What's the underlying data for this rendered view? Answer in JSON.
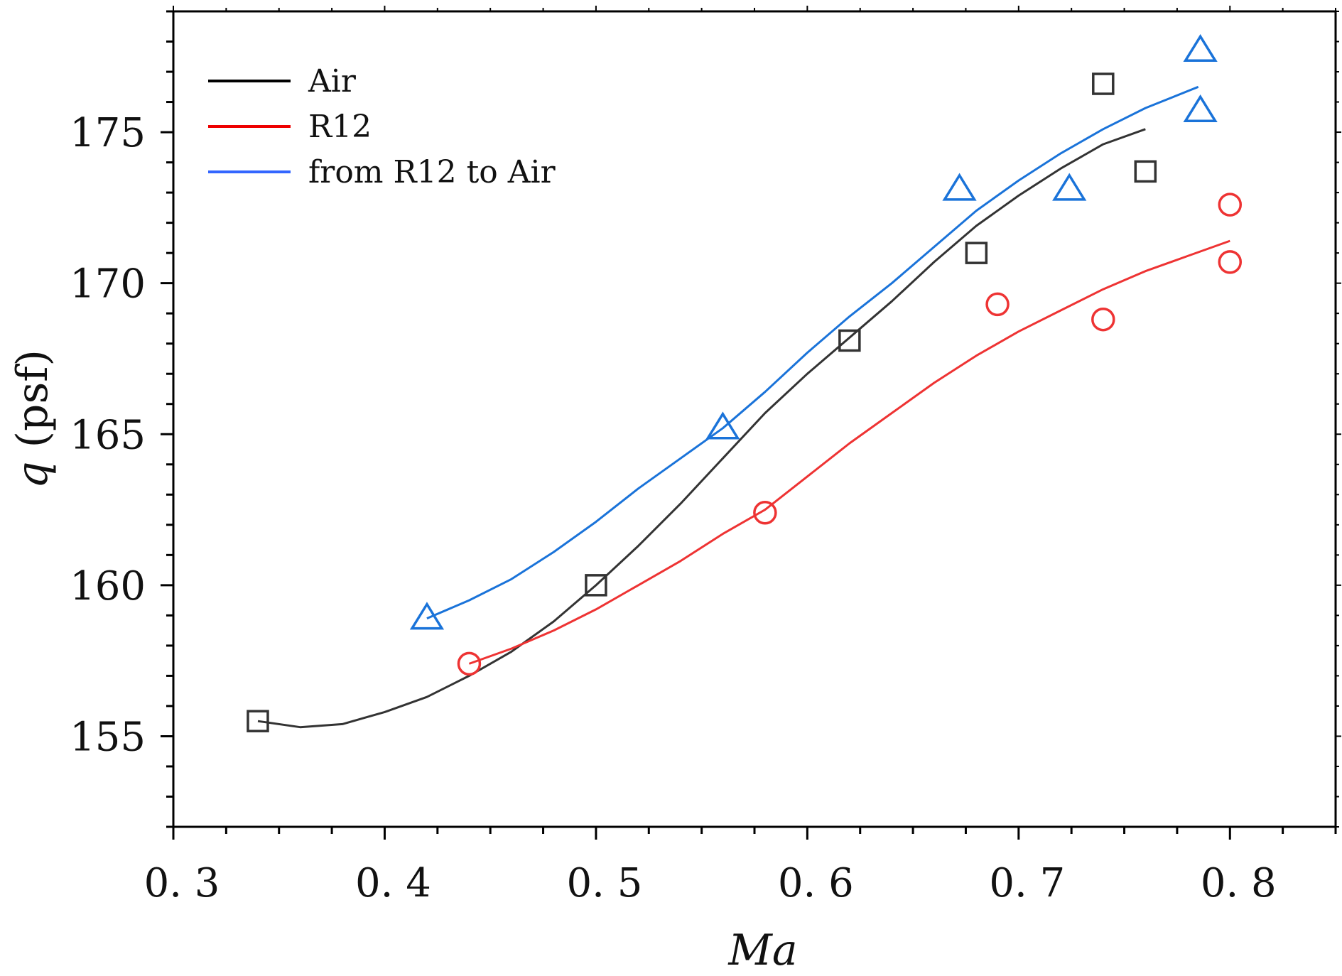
{
  "chart_data": {
    "type": "line",
    "title": "",
    "xlabel": "Ma",
    "ylabel_var": "q",
    "ylabel_unit": " (psf)",
    "xlim": [
      0.3,
      0.85
    ],
    "ylim": [
      152,
      179
    ],
    "xticks": [
      0.3,
      0.4,
      0.5,
      0.6,
      0.7,
      0.8
    ],
    "xtick_labels": [
      "0. 3",
      "0. 4",
      "0. 5",
      "0. 6",
      "0. 7",
      "0. 8"
    ],
    "yticks": [
      155,
      160,
      165,
      170,
      175
    ],
    "ytick_labels": [
      "155",
      "160",
      "165",
      "170",
      "175"
    ],
    "legend_position": "top-left",
    "series": [
      {
        "name": "Air",
        "color": "#333333",
        "legend_color": "#000000",
        "marker": "square",
        "points": [
          {
            "x": 0.34,
            "y": 155.5
          },
          {
            "x": 0.5,
            "y": 160.0
          },
          {
            "x": 0.62,
            "y": 168.1
          },
          {
            "x": 0.68,
            "y": 171.0
          },
          {
            "x": 0.74,
            "y": 176.6
          },
          {
            "x": 0.76,
            "y": 173.7
          }
        ],
        "fit": [
          {
            "x": 0.34,
            "y": 155.5
          },
          {
            "x": 0.36,
            "y": 155.3
          },
          {
            "x": 0.38,
            "y": 155.4
          },
          {
            "x": 0.4,
            "y": 155.8
          },
          {
            "x": 0.42,
            "y": 156.3
          },
          {
            "x": 0.44,
            "y": 157.0
          },
          {
            "x": 0.46,
            "y": 157.8
          },
          {
            "x": 0.48,
            "y": 158.8
          },
          {
            "x": 0.5,
            "y": 160.0
          },
          {
            "x": 0.52,
            "y": 161.3
          },
          {
            "x": 0.54,
            "y": 162.7
          },
          {
            "x": 0.56,
            "y": 164.2
          },
          {
            "x": 0.58,
            "y": 165.7
          },
          {
            "x": 0.6,
            "y": 167.0
          },
          {
            "x": 0.62,
            "y": 168.2
          },
          {
            "x": 0.64,
            "y": 169.4
          },
          {
            "x": 0.66,
            "y": 170.7
          },
          {
            "x": 0.68,
            "y": 171.9
          },
          {
            "x": 0.7,
            "y": 172.9
          },
          {
            "x": 0.72,
            "y": 173.8
          },
          {
            "x": 0.74,
            "y": 174.6
          },
          {
            "x": 0.76,
            "y": 175.1
          }
        ]
      },
      {
        "name": "R12",
        "color": "#ee3333",
        "legend_color": "#ee0000",
        "marker": "circle",
        "points": [
          {
            "x": 0.44,
            "y": 157.4
          },
          {
            "x": 0.58,
            "y": 162.4
          },
          {
            "x": 0.69,
            "y": 169.3
          },
          {
            "x": 0.74,
            "y": 168.8
          },
          {
            "x": 0.8,
            "y": 172.6
          },
          {
            "x": 0.8,
            "y": 170.7
          }
        ],
        "fit": [
          {
            "x": 0.44,
            "y": 157.4
          },
          {
            "x": 0.46,
            "y": 157.9
          },
          {
            "x": 0.48,
            "y": 158.5
          },
          {
            "x": 0.5,
            "y": 159.2
          },
          {
            "x": 0.52,
            "y": 160.0
          },
          {
            "x": 0.54,
            "y": 160.8
          },
          {
            "x": 0.56,
            "y": 161.7
          },
          {
            "x": 0.58,
            "y": 162.5
          },
          {
            "x": 0.6,
            "y": 163.6
          },
          {
            "x": 0.62,
            "y": 164.7
          },
          {
            "x": 0.64,
            "y": 165.7
          },
          {
            "x": 0.66,
            "y": 166.7
          },
          {
            "x": 0.68,
            "y": 167.6
          },
          {
            "x": 0.7,
            "y": 168.4
          },
          {
            "x": 0.72,
            "y": 169.1
          },
          {
            "x": 0.74,
            "y": 169.8
          },
          {
            "x": 0.76,
            "y": 170.4
          },
          {
            "x": 0.78,
            "y": 170.9
          },
          {
            "x": 0.8,
            "y": 171.4
          }
        ]
      },
      {
        "name": "from R12 to Air",
        "color": "#1a73d9",
        "legend_color": "#3366ff",
        "marker": "triangle",
        "points": [
          {
            "x": 0.42,
            "y": 158.9
          },
          {
            "x": 0.56,
            "y": 165.2
          },
          {
            "x": 0.672,
            "y": 173.1
          },
          {
            "x": 0.724,
            "y": 173.1
          },
          {
            "x": 0.786,
            "y": 177.7
          },
          {
            "x": 0.786,
            "y": 175.7
          }
        ],
        "fit": [
          {
            "x": 0.42,
            "y": 158.9
          },
          {
            "x": 0.44,
            "y": 159.5
          },
          {
            "x": 0.46,
            "y": 160.2
          },
          {
            "x": 0.48,
            "y": 161.1
          },
          {
            "x": 0.5,
            "y": 162.1
          },
          {
            "x": 0.52,
            "y": 163.2
          },
          {
            "x": 0.54,
            "y": 164.2
          },
          {
            "x": 0.56,
            "y": 165.2
          },
          {
            "x": 0.58,
            "y": 166.4
          },
          {
            "x": 0.6,
            "y": 167.7
          },
          {
            "x": 0.62,
            "y": 168.9
          },
          {
            "x": 0.64,
            "y": 170.0
          },
          {
            "x": 0.66,
            "y": 171.2
          },
          {
            "x": 0.68,
            "y": 172.4
          },
          {
            "x": 0.7,
            "y": 173.4
          },
          {
            "x": 0.72,
            "y": 174.3
          },
          {
            "x": 0.74,
            "y": 175.1
          },
          {
            "x": 0.76,
            "y": 175.8
          },
          {
            "x": 0.785,
            "y": 176.5
          }
        ]
      }
    ]
  }
}
